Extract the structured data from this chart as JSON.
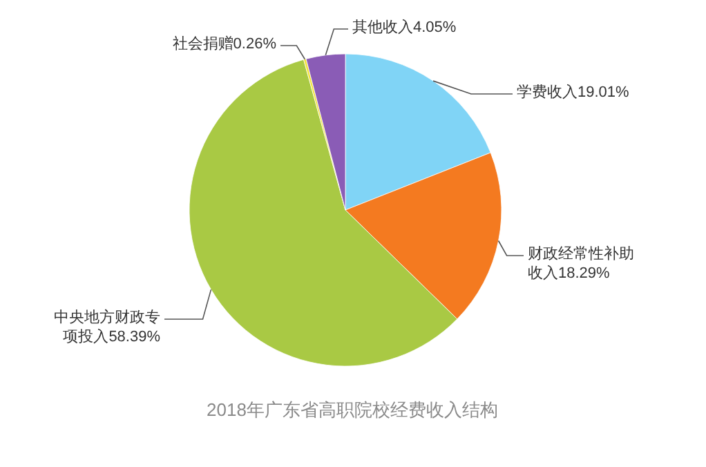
{
  "chart_data": {
    "type": "pie",
    "title": "2018年广东省高职院校经费收入结构",
    "categories": [
      "学费收入",
      "财政经常性补助收入",
      "中央地方财政专项投入",
      "社会捐赠",
      "其他收入"
    ],
    "values": [
      19.01,
      18.29,
      58.39,
      0.26,
      4.05
    ],
    "value_labels": [
      "19.01%",
      "18.29%",
      "58.39%",
      "0.26%",
      "4.05%"
    ],
    "colors": [
      "#80d4f6",
      "#f47a20",
      "#a9c944",
      "#f2e33a",
      "#8a5cb6"
    ]
  }
}
